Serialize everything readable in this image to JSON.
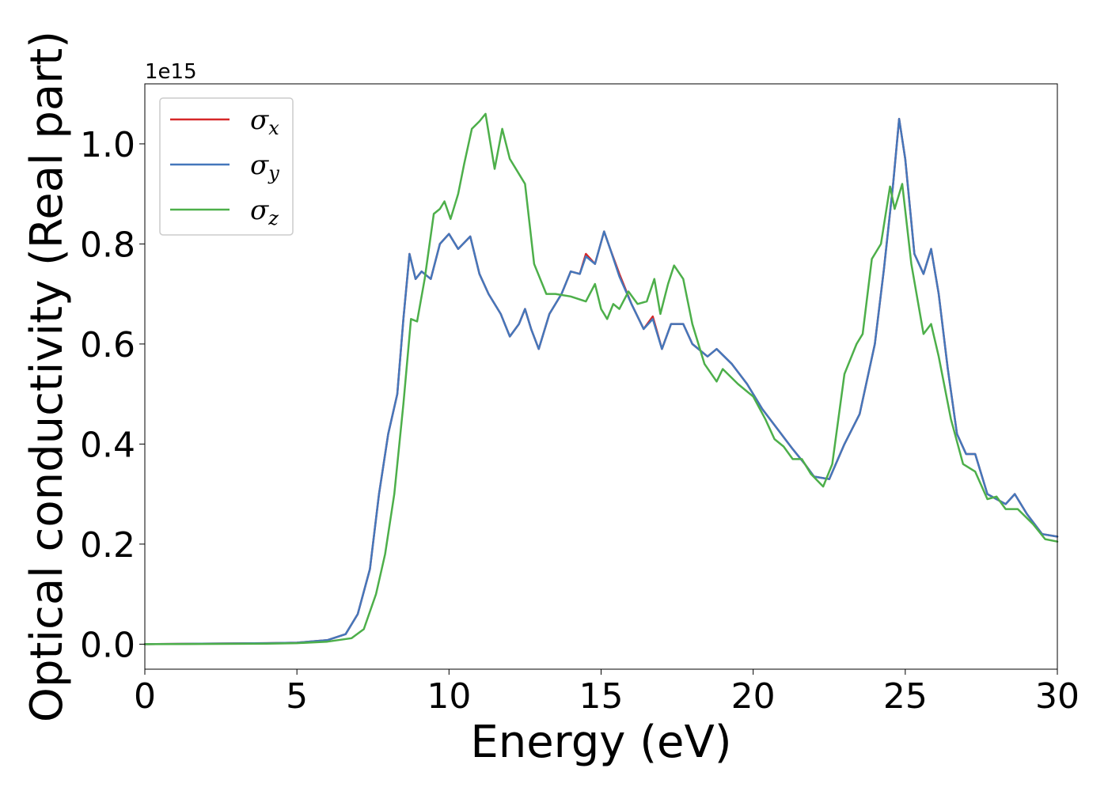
{
  "chart_data": {
    "type": "line",
    "xlabel": "Energy (eV)",
    "ylabel": "Optical conductivity (Real part)",
    "y_offset_label": "1e15",
    "xlim": [
      0,
      30
    ],
    "ylim": [
      -0.05,
      1.12
    ],
    "x_ticks": [
      0,
      5,
      10,
      15,
      20,
      25,
      30
    ],
    "x_tick_labels": [
      "0",
      "5",
      "10",
      "15",
      "20",
      "25",
      "30"
    ],
    "y_ticks": [
      0.0,
      0.2,
      0.4,
      0.6,
      0.8,
      1.0
    ],
    "y_tick_labels": [
      "0.0",
      "0.2",
      "0.4",
      "0.6",
      "0.8",
      "1.0"
    ],
    "grid": false,
    "legend_position": "top-left",
    "series": [
      {
        "name": "σx",
        "symbol": "σ",
        "subscript": "x",
        "color": "#d62728",
        "points": [
          [
            0,
            0
          ],
          [
            4,
            0.002
          ],
          [
            5,
            0.003
          ],
          [
            6,
            0.008
          ],
          [
            6.6,
            0.02
          ],
          [
            7,
            0.06
          ],
          [
            7.4,
            0.15
          ],
          [
            7.7,
            0.3
          ],
          [
            8.0,
            0.42
          ],
          [
            8.3,
            0.5
          ],
          [
            8.5,
            0.65
          ],
          [
            8.7,
            0.78
          ],
          [
            8.9,
            0.73
          ],
          [
            9.1,
            0.745
          ],
          [
            9.4,
            0.73
          ],
          [
            9.7,
            0.8
          ],
          [
            10.0,
            0.82
          ],
          [
            10.3,
            0.79
          ],
          [
            10.7,
            0.815
          ],
          [
            11.0,
            0.74
          ],
          [
            11.3,
            0.7
          ],
          [
            11.7,
            0.66
          ],
          [
            12.0,
            0.615
          ],
          [
            12.3,
            0.64
          ],
          [
            12.5,
            0.67
          ],
          [
            12.7,
            0.63
          ],
          [
            12.95,
            0.59
          ],
          [
            13.3,
            0.66
          ],
          [
            13.7,
            0.7
          ],
          [
            14.0,
            0.745
          ],
          [
            14.3,
            0.74
          ],
          [
            14.5,
            0.78
          ],
          [
            14.8,
            0.76
          ],
          [
            15.1,
            0.825
          ],
          [
            15.3,
            0.79
          ],
          [
            15.6,
            0.74
          ],
          [
            16.0,
            0.68
          ],
          [
            16.4,
            0.63
          ],
          [
            16.7,
            0.655
          ],
          [
            17.0,
            0.59
          ],
          [
            17.3,
            0.64
          ],
          [
            17.7,
            0.64
          ],
          [
            18.0,
            0.6
          ],
          [
            18.5,
            0.575
          ],
          [
            18.8,
            0.59
          ],
          [
            19.3,
            0.56
          ],
          [
            19.8,
            0.52
          ],
          [
            20.3,
            0.47
          ],
          [
            20.8,
            0.43
          ],
          [
            21.3,
            0.39
          ],
          [
            21.7,
            0.36
          ],
          [
            22.0,
            0.335
          ],
          [
            22.5,
            0.33
          ],
          [
            23.0,
            0.4
          ],
          [
            23.5,
            0.46
          ],
          [
            24.0,
            0.6
          ],
          [
            24.3,
            0.75
          ],
          [
            24.6,
            0.92
          ],
          [
            24.8,
            1.05
          ],
          [
            25.0,
            0.97
          ],
          [
            25.3,
            0.78
          ],
          [
            25.6,
            0.74
          ],
          [
            25.85,
            0.79
          ],
          [
            26.1,
            0.7
          ],
          [
            26.4,
            0.55
          ],
          [
            26.7,
            0.42
          ],
          [
            27.0,
            0.38
          ],
          [
            27.3,
            0.38
          ],
          [
            27.7,
            0.3
          ],
          [
            28.0,
            0.29
          ],
          [
            28.3,
            0.28
          ],
          [
            28.6,
            0.3
          ],
          [
            29.0,
            0.26
          ],
          [
            29.5,
            0.22
          ],
          [
            30.0,
            0.215
          ]
        ]
      },
      {
        "name": "σy",
        "symbol": "σ",
        "subscript": "y",
        "color": "#4477bb",
        "points": [
          [
            0,
            0
          ],
          [
            4,
            0.002
          ],
          [
            5,
            0.003
          ],
          [
            6,
            0.008
          ],
          [
            6.6,
            0.02
          ],
          [
            7,
            0.06
          ],
          [
            7.4,
            0.15
          ],
          [
            7.7,
            0.3
          ],
          [
            8.0,
            0.42
          ],
          [
            8.3,
            0.5
          ],
          [
            8.5,
            0.65
          ],
          [
            8.7,
            0.78
          ],
          [
            8.9,
            0.73
          ],
          [
            9.1,
            0.745
          ],
          [
            9.4,
            0.73
          ],
          [
            9.7,
            0.8
          ],
          [
            10.0,
            0.82
          ],
          [
            10.3,
            0.79
          ],
          [
            10.7,
            0.815
          ],
          [
            11.0,
            0.74
          ],
          [
            11.3,
            0.7
          ],
          [
            11.7,
            0.66
          ],
          [
            12.0,
            0.615
          ],
          [
            12.3,
            0.64
          ],
          [
            12.5,
            0.67
          ],
          [
            12.7,
            0.63
          ],
          [
            12.95,
            0.59
          ],
          [
            13.3,
            0.66
          ],
          [
            13.7,
            0.7
          ],
          [
            14.0,
            0.745
          ],
          [
            14.3,
            0.74
          ],
          [
            14.5,
            0.775
          ],
          [
            14.8,
            0.76
          ],
          [
            15.1,
            0.825
          ],
          [
            15.3,
            0.79
          ],
          [
            15.6,
            0.735
          ],
          [
            16.0,
            0.68
          ],
          [
            16.4,
            0.63
          ],
          [
            16.7,
            0.65
          ],
          [
            17.0,
            0.59
          ],
          [
            17.3,
            0.64
          ],
          [
            17.7,
            0.64
          ],
          [
            18.0,
            0.6
          ],
          [
            18.5,
            0.575
          ],
          [
            18.8,
            0.59
          ],
          [
            19.3,
            0.56
          ],
          [
            19.8,
            0.52
          ],
          [
            20.3,
            0.47
          ],
          [
            20.8,
            0.43
          ],
          [
            21.3,
            0.39
          ],
          [
            21.7,
            0.36
          ],
          [
            22.0,
            0.335
          ],
          [
            22.5,
            0.33
          ],
          [
            23.0,
            0.4
          ],
          [
            23.5,
            0.46
          ],
          [
            24.0,
            0.6
          ],
          [
            24.3,
            0.75
          ],
          [
            24.6,
            0.92
          ],
          [
            24.8,
            1.05
          ],
          [
            25.0,
            0.97
          ],
          [
            25.3,
            0.78
          ],
          [
            25.6,
            0.74
          ],
          [
            25.85,
            0.79
          ],
          [
            26.1,
            0.7
          ],
          [
            26.4,
            0.55
          ],
          [
            26.7,
            0.42
          ],
          [
            27.0,
            0.38
          ],
          [
            27.3,
            0.38
          ],
          [
            27.7,
            0.3
          ],
          [
            28.0,
            0.29
          ],
          [
            28.3,
            0.28
          ],
          [
            28.6,
            0.3
          ],
          [
            29.0,
            0.26
          ],
          [
            29.5,
            0.22
          ],
          [
            30.0,
            0.215
          ]
        ]
      },
      {
        "name": "σz",
        "symbol": "σ",
        "subscript": "z",
        "color": "#4daf4a",
        "points": [
          [
            0,
            0
          ],
          [
            4,
            0.001
          ],
          [
            5,
            0.002
          ],
          [
            6,
            0.005
          ],
          [
            6.8,
            0.012
          ],
          [
            7.2,
            0.03
          ],
          [
            7.6,
            0.1
          ],
          [
            7.9,
            0.18
          ],
          [
            8.2,
            0.3
          ],
          [
            8.5,
            0.48
          ],
          [
            8.75,
            0.65
          ],
          [
            8.95,
            0.645
          ],
          [
            9.2,
            0.73
          ],
          [
            9.5,
            0.86
          ],
          [
            9.7,
            0.87
          ],
          [
            9.85,
            0.885
          ],
          [
            10.05,
            0.85
          ],
          [
            10.3,
            0.9
          ],
          [
            10.5,
            0.96
          ],
          [
            10.75,
            1.03
          ],
          [
            11.0,
            1.045
          ],
          [
            11.2,
            1.06
          ],
          [
            11.5,
            0.95
          ],
          [
            11.75,
            1.03
          ],
          [
            12.0,
            0.97
          ],
          [
            12.3,
            0.94
          ],
          [
            12.5,
            0.92
          ],
          [
            12.8,
            0.76
          ],
          [
            13.2,
            0.7
          ],
          [
            13.5,
            0.7
          ],
          [
            14.0,
            0.695
          ],
          [
            14.5,
            0.685
          ],
          [
            14.8,
            0.72
          ],
          [
            15.0,
            0.67
          ],
          [
            15.2,
            0.65
          ],
          [
            15.4,
            0.68
          ],
          [
            15.6,
            0.67
          ],
          [
            15.9,
            0.705
          ],
          [
            16.2,
            0.68
          ],
          [
            16.5,
            0.685
          ],
          [
            16.75,
            0.73
          ],
          [
            16.95,
            0.66
          ],
          [
            17.2,
            0.72
          ],
          [
            17.4,
            0.757
          ],
          [
            17.7,
            0.73
          ],
          [
            18.0,
            0.64
          ],
          [
            18.4,
            0.56
          ],
          [
            18.8,
            0.525
          ],
          [
            19.0,
            0.55
          ],
          [
            19.5,
            0.52
          ],
          [
            19.8,
            0.505
          ],
          [
            20.0,
            0.495
          ],
          [
            20.4,
            0.45
          ],
          [
            20.7,
            0.41
          ],
          [
            21.0,
            0.395
          ],
          [
            21.3,
            0.37
          ],
          [
            21.6,
            0.37
          ],
          [
            21.9,
            0.34
          ],
          [
            22.3,
            0.315
          ],
          [
            22.6,
            0.36
          ],
          [
            23.0,
            0.54
          ],
          [
            23.4,
            0.6
          ],
          [
            23.6,
            0.62
          ],
          [
            23.9,
            0.77
          ],
          [
            24.2,
            0.8
          ],
          [
            24.5,
            0.915
          ],
          [
            24.65,
            0.87
          ],
          [
            24.9,
            0.92
          ],
          [
            25.2,
            0.76
          ],
          [
            25.6,
            0.62
          ],
          [
            25.85,
            0.64
          ],
          [
            26.1,
            0.575
          ],
          [
            26.5,
            0.45
          ],
          [
            26.9,
            0.36
          ],
          [
            27.3,
            0.345
          ],
          [
            27.7,
            0.29
          ],
          [
            28.0,
            0.295
          ],
          [
            28.3,
            0.27
          ],
          [
            28.7,
            0.27
          ],
          [
            29.2,
            0.24
          ],
          [
            29.6,
            0.21
          ],
          [
            30.0,
            0.205
          ]
        ]
      }
    ]
  }
}
